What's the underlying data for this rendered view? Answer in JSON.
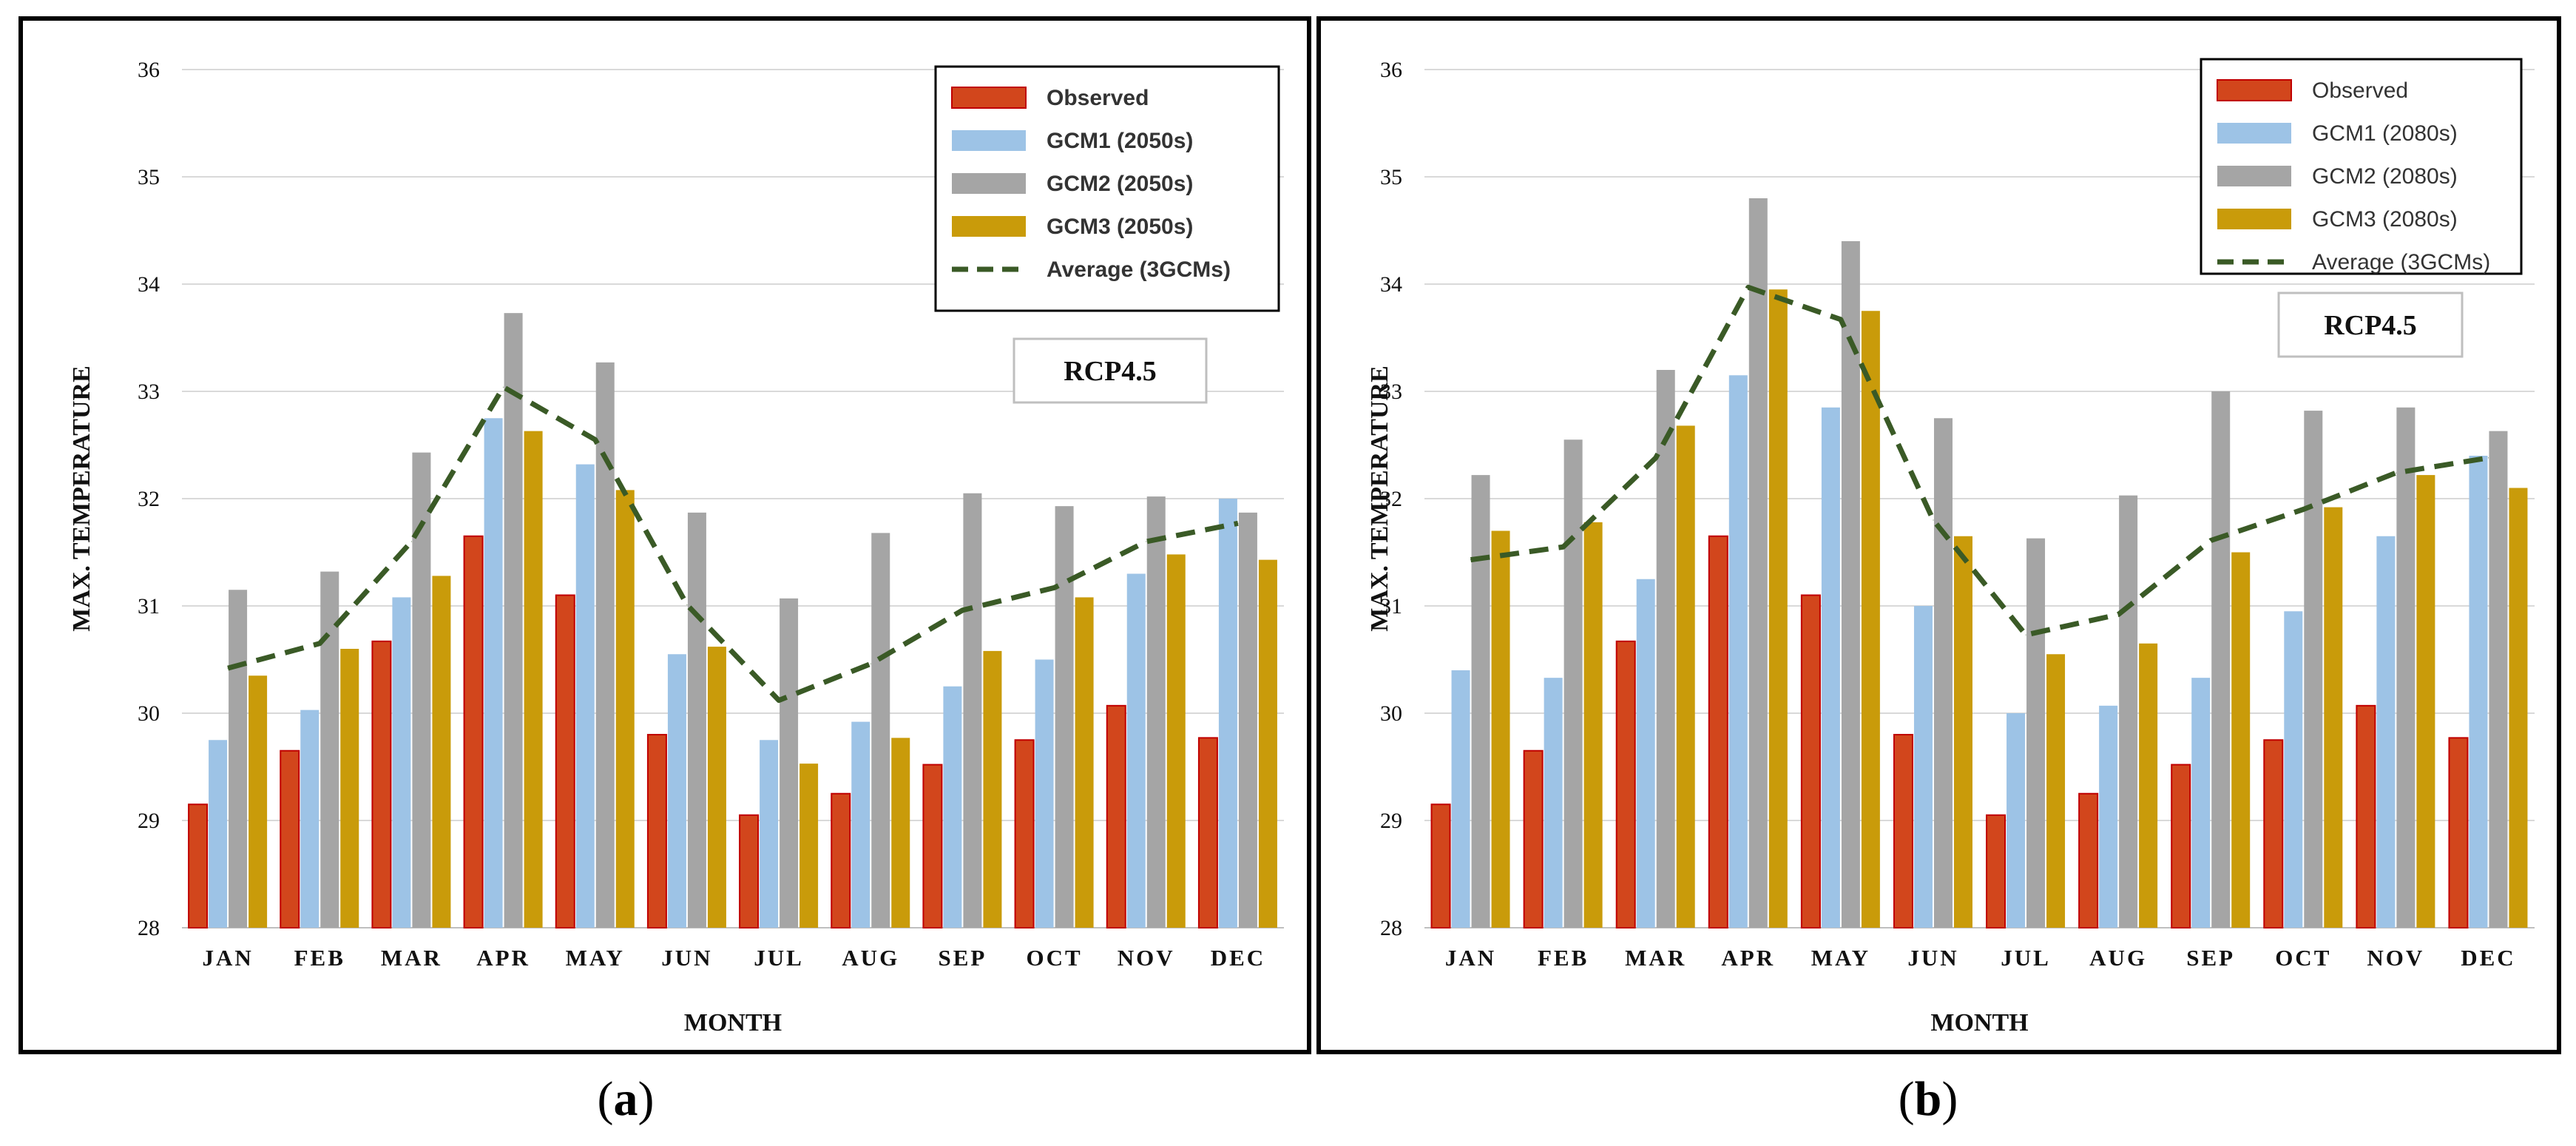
{
  "chart_data": [
    {
      "type": "bar",
      "panel": "a",
      "title": "",
      "annotation": "RCP4.5",
      "xlabel": "MONTH",
      "ylabel": "MAX. TEMPERATURE",
      "ylim": [
        28,
        36
      ],
      "yticks": [
        28,
        29,
        30,
        31,
        32,
        33,
        34,
        35,
        36
      ],
      "grid": true,
      "legend_position": "top-right",
      "categories": [
        "JAN",
        "FEB",
        "MAR",
        "APR",
        "MAY",
        "JUN",
        "JUL",
        "AUG",
        "SEP",
        "OCT",
        "NOV",
        "DEC"
      ],
      "series": [
        {
          "name": "Observed",
          "type": "bar",
          "color": "#d2461c",
          "values": [
            29.15,
            29.65,
            30.67,
            31.65,
            31.1,
            29.8,
            29.05,
            29.25,
            29.52,
            29.75,
            30.07,
            29.77
          ]
        },
        {
          "name": "GCM1 (2050s)",
          "type": "bar",
          "color": "#9dc3e6",
          "values": [
            29.75,
            30.03,
            31.08,
            32.75,
            32.32,
            30.55,
            29.75,
            29.92,
            30.25,
            30.5,
            31.3,
            32.0
          ]
        },
        {
          "name": "GCM2 (2050s)",
          "type": "bar",
          "color": "#a5a5a5",
          "values": [
            31.15,
            31.32,
            32.43,
            33.73,
            33.27,
            31.87,
            31.07,
            31.68,
            32.05,
            31.93,
            32.02,
            31.87
          ]
        },
        {
          "name": "GCM3 (2050s)",
          "type": "bar",
          "color": "#c99b0a",
          "values": [
            30.35,
            30.6,
            31.28,
            32.63,
            32.08,
            30.62,
            29.53,
            29.77,
            30.58,
            31.08,
            31.48,
            31.43
          ]
        },
        {
          "name": "Average (3GCMs)",
          "type": "line",
          "style": "dashed",
          "color": "#3a5a26",
          "values": [
            30.42,
            30.65,
            31.6,
            33.04,
            32.55,
            31.01,
            30.12,
            30.46,
            30.96,
            31.17,
            31.6,
            31.77
          ]
        }
      ]
    },
    {
      "type": "bar",
      "panel": "b",
      "title": "",
      "annotation": "RCP4.5",
      "xlabel": "MONTH",
      "ylabel": "MAX. TEMPERATURE",
      "ylim": [
        28,
        36
      ],
      "yticks": [
        28,
        29,
        30,
        31,
        32,
        33,
        34,
        35,
        36
      ],
      "grid": true,
      "legend_position": "top-right",
      "categories": [
        "JAN",
        "FEB",
        "MAR",
        "APR",
        "MAY",
        "JUN",
        "JUL",
        "AUG",
        "SEP",
        "OCT",
        "NOV",
        "DEC"
      ],
      "series": [
        {
          "name": "Observed",
          "type": "bar",
          "color": "#d2461c",
          "values": [
            29.15,
            29.65,
            30.67,
            31.65,
            31.1,
            29.8,
            29.05,
            29.25,
            29.52,
            29.75,
            30.07,
            29.77
          ]
        },
        {
          "name": "GCM1 (2080s)",
          "type": "bar",
          "color": "#9dc3e6",
          "values": [
            30.4,
            30.33,
            31.25,
            33.15,
            32.85,
            31.0,
            30.0,
            30.07,
            30.33,
            30.95,
            31.65,
            32.4
          ]
        },
        {
          "name": "GCM2 (2080s)",
          "type": "bar",
          "color": "#a5a5a5",
          "values": [
            32.22,
            32.55,
            33.2,
            34.8,
            34.4,
            32.75,
            31.63,
            32.03,
            33.0,
            32.82,
            32.85,
            32.63
          ]
        },
        {
          "name": "GCM3 (2080s)",
          "type": "bar",
          "color": "#c99b0a",
          "values": [
            31.7,
            31.78,
            32.68,
            33.95,
            33.75,
            31.65,
            30.55,
            30.65,
            31.5,
            31.92,
            32.22,
            32.1
          ]
        },
        {
          "name": "Average (3GCMs)",
          "type": "line",
          "style": "dashed",
          "color": "#3a5a26",
          "values": [
            31.43,
            31.55,
            32.38,
            33.97,
            33.67,
            31.8,
            30.73,
            30.92,
            31.61,
            31.9,
            32.24,
            32.38
          ]
        }
      ]
    }
  ],
  "captions": {
    "a_open": "(",
    "a_letter": "a",
    "a_close": ")",
    "b_open": "(",
    "b_letter": "b",
    "b_close": ")"
  }
}
